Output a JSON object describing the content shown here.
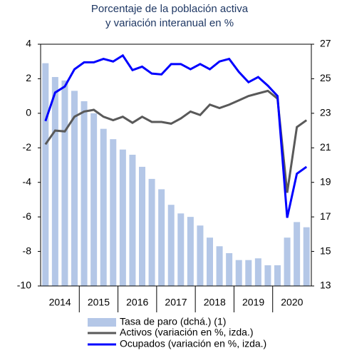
{
  "chart_data": {
    "type": "bar_line",
    "title": [
      "Porcentaje de la población activa",
      "y variación interanual en %"
    ],
    "x_labels": [
      "2014",
      "2015",
      "2016",
      "2017",
      "2018",
      "2019",
      "2020"
    ],
    "quarters_per_label": 4,
    "ylim": [
      -10,
      4
    ],
    "yticks": [
      -10,
      -8,
      -6,
      -4,
      -2,
      0,
      2,
      4
    ],
    "y2lim": [
      13,
      27
    ],
    "y2ticks": [
      13,
      15,
      17,
      19,
      21,
      23,
      25,
      27
    ],
    "series": [
      {
        "name": "Tasa de paro (dchá.) (1)",
        "kind": "bar",
        "axis": "y2",
        "color": "#b4c7e7",
        "values": [
          25.9,
          25.1,
          24.9,
          24.3,
          23.7,
          23.0,
          22.1,
          21.5,
          20.9,
          20.6,
          19.9,
          19.2,
          18.6,
          17.7,
          17.2,
          17.0,
          16.5,
          15.8,
          15.3,
          14.9,
          14.5,
          14.5,
          14.6,
          14.2,
          14.2,
          15.8,
          16.7,
          16.4
        ]
      },
      {
        "name": "Activos (variación en %, izda.)",
        "kind": "line",
        "color": "#595959",
        "values": [
          -1.8,
          -1.0,
          -1.05,
          -0.2,
          0.1,
          0.2,
          -0.2,
          -0.4,
          -0.2,
          -0.55,
          -0.2,
          -0.5,
          -0.5,
          -0.6,
          -0.3,
          0.1,
          -0.1,
          0.5,
          0.3,
          0.5,
          0.75,
          1.0,
          1.15,
          1.3,
          0.85,
          -4.6,
          -0.8,
          -0.4
        ]
      },
      {
        "name": "Ocupados (variación en %, izda.)",
        "kind": "line",
        "color": "#0000ff",
        "values": [
          -0.45,
          1.2,
          1.55,
          2.55,
          2.95,
          2.95,
          3.15,
          3.0,
          3.35,
          2.5,
          2.7,
          2.3,
          2.25,
          2.85,
          2.85,
          2.55,
          2.85,
          2.55,
          3.0,
          3.15,
          2.4,
          1.8,
          2.1,
          1.6,
          1.0,
          -6.05,
          -3.5,
          -3.1
        ]
      }
    ]
  }
}
